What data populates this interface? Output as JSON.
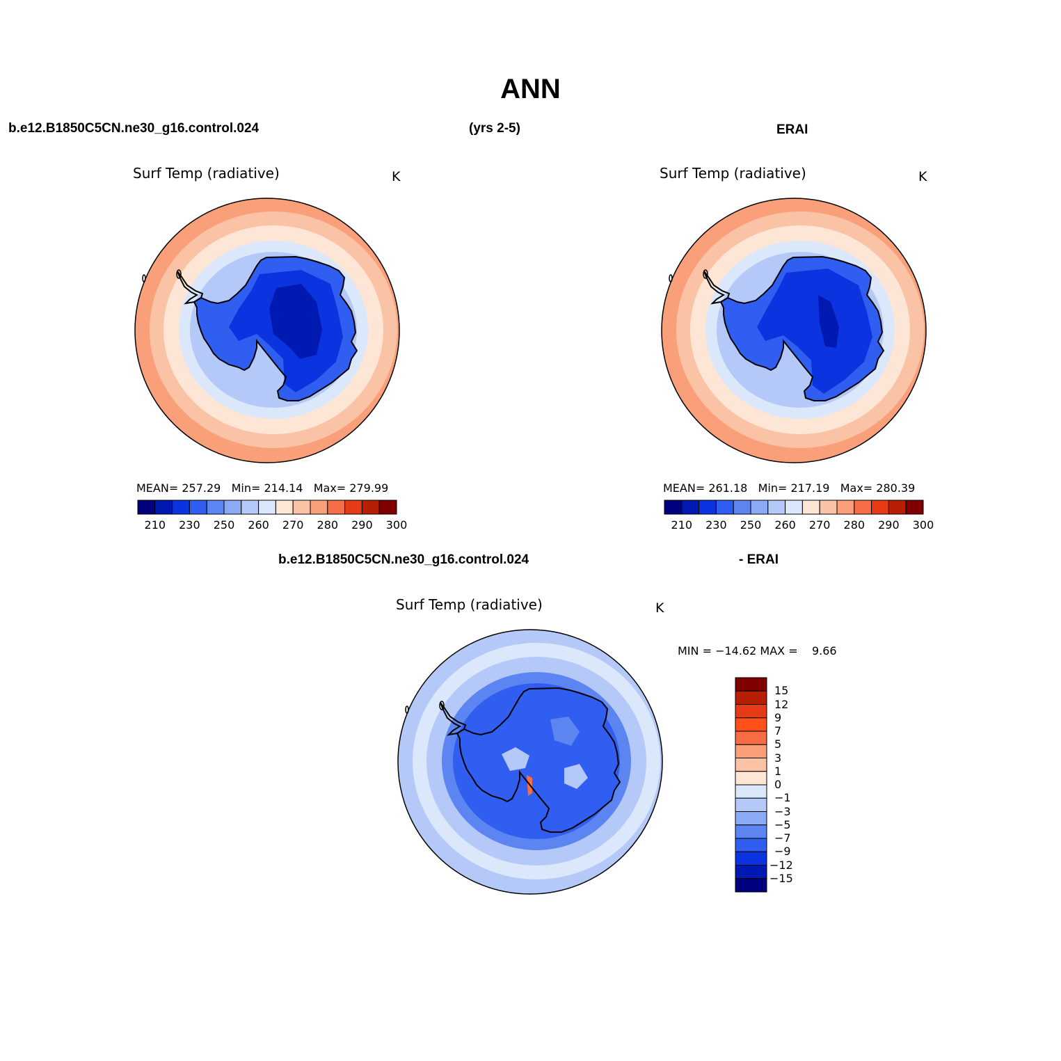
{
  "title": "ANN",
  "header": {
    "case_name": "b.e12.B1850C5CN.ne30_g16.control.024",
    "years": "(yrs 2-5)",
    "obs_name": "ERAI"
  },
  "panels": [
    {
      "variable": "Surf Temp (radiative)",
      "units": "K",
      "mean_label": "MEAN=",
      "mean": "257.29",
      "min_label": "Min=",
      "min": "214.14",
      "max_label": "Max=",
      "max": "279.99"
    },
    {
      "variable": "Surf Temp (radiative)",
      "units": "K",
      "mean_label": "MEAN=",
      "mean": "261.18",
      "min_label": "Min=",
      "min": "217.19",
      "max_label": "Max=",
      "max": "280.39"
    }
  ],
  "diff": {
    "case_name": "b.e12.B1850C5CN.ne30_g16.control.024",
    "minus_label": "- ERAI",
    "variable": "Surf Temp (radiative)",
    "units": "K",
    "min_label": "MIN =",
    "min": "−14.62",
    "max_label": "MAX =",
    "max": "9.66"
  },
  "colorbar_levels": [
    "210",
    "230",
    "250",
    "260",
    "270",
    "280",
    "290",
    "300"
  ],
  "colorbar_colors": [
    "#00007f",
    "#0019b0",
    "#0b34e0",
    "#2f5ef0",
    "#5c85f2",
    "#8aaaf5",
    "#b4c9f8",
    "#dbe7fb",
    "#fde6d6",
    "#fbc3a6",
    "#f9a07a",
    "#f76d45",
    "#e73a17",
    "#b71f05",
    "#800000"
  ],
  "diff_levels": [
    "15",
    "12",
    "9",
    "7",
    "5",
    "3",
    "1",
    "0",
    "−1",
    "−3",
    "−5",
    "−7",
    "−9",
    "−12",
    "−15"
  ],
  "diff_colors": [
    "#800000",
    "#b71f05",
    "#e73a17",
    "#ff4f1a",
    "#f76d45",
    "#f9a07a",
    "#fbc3a6",
    "#fde6d6",
    "#dbe7fb",
    "#b4c9f8",
    "#8aaaf5",
    "#5c85f2",
    "#2f5ef0",
    "#0b34e0",
    "#0019b0",
    "#00007f"
  ],
  "colors": {
    "coast": "#000000",
    "warm": "#f9a07a",
    "mid": "#fbc3a6",
    "pale": "#fde6d6",
    "cool": "#b4c9f8",
    "blue": "#5c85f2",
    "deep": "#2f5ef0",
    "deeper": "#0b34e0",
    "deepest": "#0019b0"
  }
}
